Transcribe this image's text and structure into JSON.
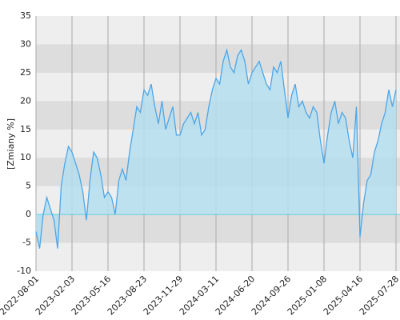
{
  "chart_data": {
    "type": "line",
    "y_label": "[Zmiany %]",
    "categories": [
      "2022-08-01",
      null,
      null,
      null,
      null,
      null,
      null,
      null,
      null,
      null,
      "2023-02-03",
      null,
      null,
      null,
      null,
      null,
      null,
      null,
      null,
      null,
      "2023-05-16",
      null,
      null,
      null,
      null,
      null,
      null,
      null,
      null,
      null,
      "2023-08-23",
      null,
      null,
      null,
      null,
      null,
      null,
      null,
      null,
      null,
      "2023-11-29",
      null,
      null,
      null,
      null,
      null,
      null,
      null,
      null,
      null,
      "2024-03-11",
      null,
      null,
      null,
      null,
      null,
      null,
      null,
      null,
      null,
      "2024-06-20",
      null,
      null,
      null,
      null,
      null,
      null,
      null,
      null,
      null,
      "2024-09-26",
      null,
      null,
      null,
      null,
      null,
      null,
      null,
      null,
      null,
      "2025-01-08",
      null,
      null,
      null,
      null,
      null,
      null,
      null,
      null,
      null,
      "2025-04-16",
      null,
      null,
      null,
      null,
      null,
      null,
      null,
      null,
      null,
      "2025-07-28"
    ],
    "values": [
      -3,
      -6,
      0,
      3,
      1,
      -1,
      -6,
      5,
      9,
      12,
      11,
      9,
      7,
      4,
      -1,
      6,
      11,
      10,
      7,
      3,
      4,
      3,
      0,
      6,
      8,
      6,
      11,
      15,
      19,
      18,
      22,
      21,
      23,
      19,
      16,
      20,
      15,
      17,
      19,
      14,
      14,
      16,
      17,
      18,
      16,
      18,
      14,
      15,
      19,
      22,
      24,
      23,
      27,
      29,
      26,
      25,
      28,
      29,
      27,
      23,
      25,
      26,
      27,
      25,
      23,
      22,
      26,
      25,
      27,
      22,
      17,
      21,
      23,
      19,
      20,
      18,
      17,
      19,
      18,
      13,
      9,
      14,
      18,
      20,
      16,
      18,
      17,
      13,
      10,
      19,
      -4,
      2,
      6,
      7,
      11,
      13,
      16,
      18,
      22,
      19,
      22
    ],
    "color": "#4da6e8",
    "fill": "#b5def0",
    "ylim": [
      -10,
      35
    ],
    "yticks": [
      -10,
      -5,
      0,
      5,
      10,
      15,
      20,
      25,
      30,
      35
    ],
    "grid": true
  }
}
